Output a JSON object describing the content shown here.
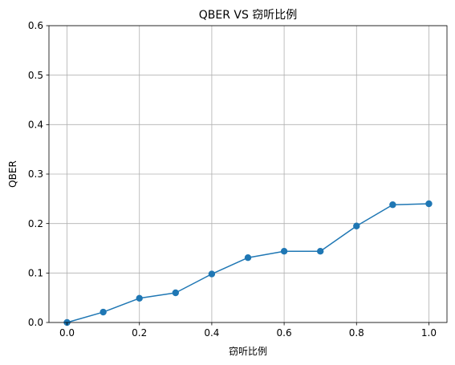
{
  "chart_data": {
    "type": "line",
    "title": "QBER VS 窃听比例",
    "xlabel": "窃听比例",
    "ylabel": "QBER",
    "xlim": [
      -0.05,
      1.05
    ],
    "ylim": [
      0,
      0.6
    ],
    "xticks": [
      0.0,
      0.2,
      0.4,
      0.6,
      0.8,
      1.0
    ],
    "xtick_labels": [
      "0.0",
      "0.2",
      "0.4",
      "0.6",
      "0.8",
      "1.0"
    ],
    "yticks": [
      0.0,
      0.1,
      0.2,
      0.3,
      0.4,
      0.5,
      0.6
    ],
    "ytick_labels": [
      "0.0",
      "0.1",
      "0.2",
      "0.3",
      "0.4",
      "0.5",
      "0.6"
    ],
    "grid": true,
    "series": [
      {
        "color": "#1f77b4",
        "marker": "circle",
        "x": [
          0.0,
          0.1,
          0.2,
          0.3,
          0.4,
          0.5,
          0.6,
          0.7,
          0.8,
          0.9,
          1.0
        ],
        "y": [
          0.0,
          0.021,
          0.049,
          0.06,
          0.098,
          0.131,
          0.144,
          0.144,
          0.195,
          0.238,
          0.24
        ]
      }
    ]
  }
}
